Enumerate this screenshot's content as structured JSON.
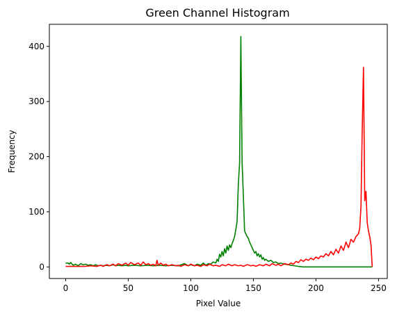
{
  "chart_data": {
    "type": "line",
    "title": "Green Channel Histogram",
    "xlabel": "Pixel Value",
    "ylabel": "Frequency",
    "xlim": [
      -13,
      257
    ],
    "ylim": [
      -21,
      440
    ],
    "xticks": [
      0,
      50,
      100,
      150,
      200,
      250
    ],
    "yticks": [
      0,
      100,
      200,
      300,
      400
    ],
    "grid": false,
    "series": [
      {
        "color": "#008000",
        "points": [
          [
            0,
            7
          ],
          [
            2,
            7
          ],
          [
            3,
            5
          ],
          [
            4,
            8
          ],
          [
            6,
            3
          ],
          [
            8,
            5
          ],
          [
            10,
            2
          ],
          [
            12,
            6
          ],
          [
            14,
            4
          ],
          [
            16,
            5
          ],
          [
            18,
            3
          ],
          [
            20,
            4
          ],
          [
            22,
            2
          ],
          [
            24,
            4
          ],
          [
            26,
            2
          ],
          [
            28,
            3
          ],
          [
            30,
            2
          ],
          [
            32,
            3
          ],
          [
            35,
            2
          ],
          [
            38,
            4
          ],
          [
            40,
            2
          ],
          [
            42,
            3
          ],
          [
            45,
            2
          ],
          [
            48,
            3
          ],
          [
            50,
            2
          ],
          [
            55,
            3
          ],
          [
            60,
            2
          ],
          [
            65,
            3
          ],
          [
            70,
            2
          ],
          [
            75,
            3
          ],
          [
            80,
            2
          ],
          [
            85,
            3
          ],
          [
            90,
            2
          ],
          [
            95,
            6
          ],
          [
            98,
            2
          ],
          [
            100,
            4
          ],
          [
            103,
            2
          ],
          [
            105,
            5
          ],
          [
            108,
            3
          ],
          [
            110,
            7
          ],
          [
            112,
            3
          ],
          [
            114,
            6
          ],
          [
            116,
            5
          ],
          [
            118,
            9
          ],
          [
            120,
            7
          ],
          [
            121,
            14
          ],
          [
            122,
            10
          ],
          [
            123,
            23
          ],
          [
            124,
            18
          ],
          [
            125,
            28
          ],
          [
            126,
            20
          ],
          [
            127,
            33
          ],
          [
            128,
            25
          ],
          [
            129,
            38
          ],
          [
            130,
            30
          ],
          [
            131,
            40
          ],
          [
            132,
            35
          ],
          [
            133,
            42
          ],
          [
            134,
            48
          ],
          [
            135,
            55
          ],
          [
            136,
            68
          ],
          [
            137,
            82
          ],
          [
            138,
            150
          ],
          [
            139,
            188
          ],
          [
            140,
            418
          ],
          [
            141,
            190
          ],
          [
            142,
            130
          ],
          [
            143,
            65
          ],
          [
            144,
            60
          ],
          [
            145,
            55
          ],
          [
            146,
            52
          ],
          [
            147,
            45
          ],
          [
            148,
            40
          ],
          [
            149,
            35
          ],
          [
            150,
            30
          ],
          [
            151,
            25
          ],
          [
            152,
            28
          ],
          [
            153,
            20
          ],
          [
            154,
            24
          ],
          [
            155,
            18
          ],
          [
            156,
            22
          ],
          [
            157,
            14
          ],
          [
            158,
            17
          ],
          [
            159,
            12
          ],
          [
            160,
            14
          ],
          [
            162,
            10
          ],
          [
            164,
            12
          ],
          [
            166,
            8
          ],
          [
            168,
            9
          ],
          [
            170,
            6
          ],
          [
            172,
            7
          ],
          [
            175,
            5
          ],
          [
            178,
            4
          ],
          [
            180,
            3
          ],
          [
            183,
            2
          ],
          [
            186,
            1
          ],
          [
            190,
            0
          ],
          [
            195,
            0
          ],
          [
            200,
            0
          ],
          [
            205,
            0
          ],
          [
            210,
            0
          ],
          [
            220,
            0
          ],
          [
            230,
            0
          ],
          [
            240,
            0
          ],
          [
            245,
            0
          ]
        ]
      },
      {
        "color": "#ff0000",
        "points": [
          [
            0,
            1
          ],
          [
            10,
            1
          ],
          [
            15,
            1
          ],
          [
            20,
            2
          ],
          [
            25,
            1
          ],
          [
            28,
            3
          ],
          [
            30,
            1
          ],
          [
            33,
            4
          ],
          [
            35,
            2
          ],
          [
            38,
            5
          ],
          [
            40,
            2
          ],
          [
            42,
            6
          ],
          [
            45,
            3
          ],
          [
            48,
            7
          ],
          [
            50,
            3
          ],
          [
            52,
            8
          ],
          [
            55,
            4
          ],
          [
            58,
            7
          ],
          [
            60,
            3
          ],
          [
            62,
            9
          ],
          [
            64,
            4
          ],
          [
            66,
            6
          ],
          [
            68,
            3
          ],
          [
            70,
            5
          ],
          [
            72,
            2
          ],
          [
            73,
            12
          ],
          [
            74,
            3
          ],
          [
            76,
            7
          ],
          [
            78,
            3
          ],
          [
            80,
            5
          ],
          [
            82,
            2
          ],
          [
            85,
            4
          ],
          [
            88,
            2
          ],
          [
            90,
            3
          ],
          [
            92,
            1
          ],
          [
            95,
            4
          ],
          [
            98,
            2
          ],
          [
            100,
            5
          ],
          [
            103,
            2
          ],
          [
            105,
            3
          ],
          [
            108,
            1
          ],
          [
            110,
            4
          ],
          [
            113,
            2
          ],
          [
            115,
            5
          ],
          [
            118,
            2
          ],
          [
            120,
            3
          ],
          [
            123,
            1
          ],
          [
            125,
            4
          ],
          [
            128,
            2
          ],
          [
            130,
            5
          ],
          [
            133,
            2
          ],
          [
            135,
            4
          ],
          [
            138,
            2
          ],
          [
            140,
            3
          ],
          [
            142,
            1
          ],
          [
            145,
            4
          ],
          [
            148,
            2
          ],
          [
            150,
            3
          ],
          [
            152,
            1
          ],
          [
            155,
            4
          ],
          [
            158,
            2
          ],
          [
            160,
            5
          ],
          [
            163,
            2
          ],
          [
            165,
            6
          ],
          [
            168,
            3
          ],
          [
            170,
            5
          ],
          [
            172,
            2
          ],
          [
            175,
            6
          ],
          [
            178,
            4
          ],
          [
            180,
            7
          ],
          [
            182,
            5
          ],
          [
            184,
            10
          ],
          [
            186,
            8
          ],
          [
            188,
            13
          ],
          [
            190,
            10
          ],
          [
            192,
            14
          ],
          [
            194,
            12
          ],
          [
            196,
            16
          ],
          [
            198,
            13
          ],
          [
            200,
            18
          ],
          [
            202,
            15
          ],
          [
            204,
            20
          ],
          [
            206,
            18
          ],
          [
            208,
            24
          ],
          [
            210,
            20
          ],
          [
            212,
            28
          ],
          [
            214,
            22
          ],
          [
            216,
            32
          ],
          [
            218,
            25
          ],
          [
            220,
            38
          ],
          [
            222,
            30
          ],
          [
            224,
            45
          ],
          [
            226,
            35
          ],
          [
            228,
            50
          ],
          [
            230,
            45
          ],
          [
            232,
            55
          ],
          [
            234,
            60
          ],
          [
            235,
            70
          ],
          [
            236,
            110
          ],
          [
            237,
            250
          ],
          [
            238,
            362
          ],
          [
            239,
            120
          ],
          [
            240,
            137
          ],
          [
            241,
            80
          ],
          [
            242,
            65
          ],
          [
            243,
            55
          ],
          [
            244,
            40
          ],
          [
            245,
            0
          ]
        ]
      }
    ]
  }
}
